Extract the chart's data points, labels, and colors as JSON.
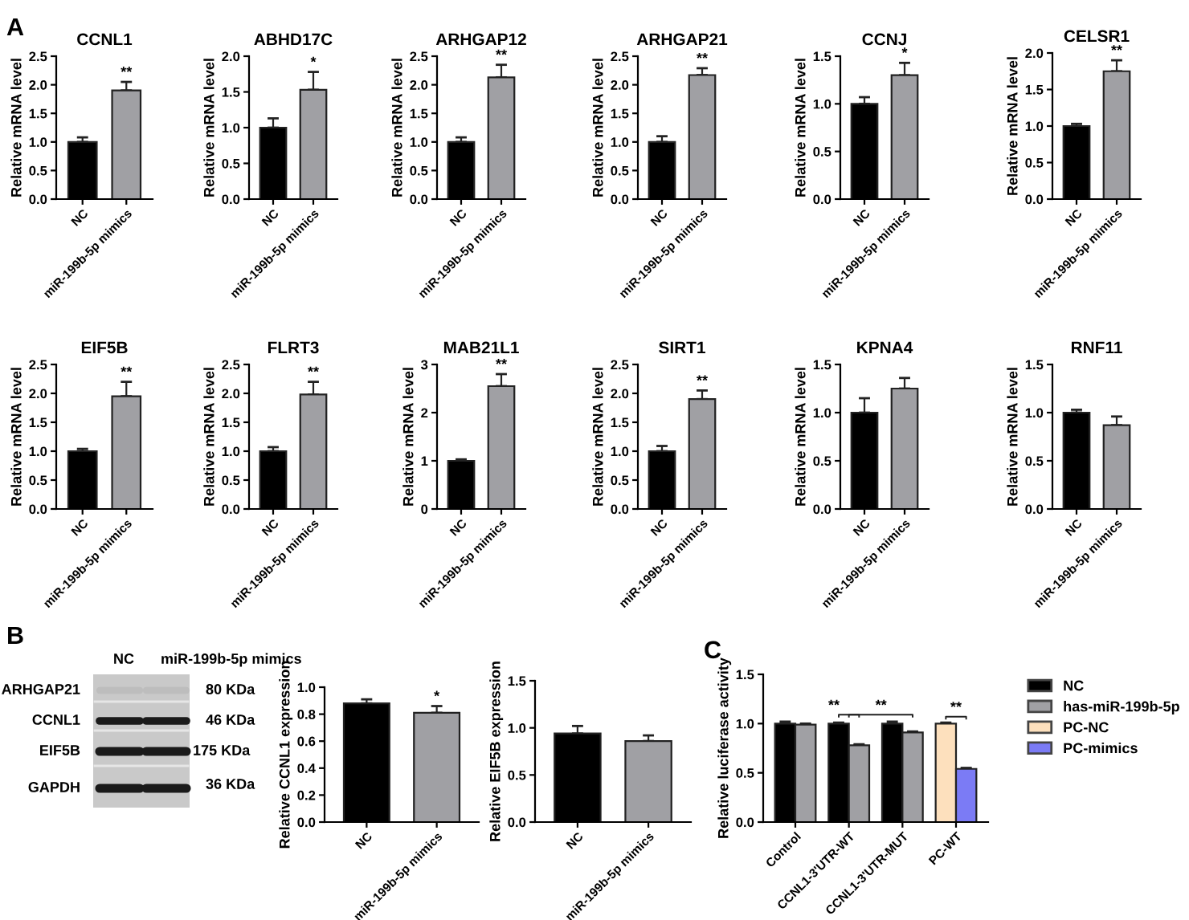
{
  "chart_data": [
    {
      "type": "bar",
      "title": "CCNL1",
      "ylabel": "Relative mRNA level",
      "categories": [
        "NC",
        "miR-199b-5p mimics"
      ],
      "values": [
        1.0,
        1.9
      ],
      "errors": [
        0.08,
        0.15
      ],
      "colors": [
        "#000000",
        "#a0a0a4"
      ],
      "ylim": [
        0,
        2.5
      ],
      "yticks": [
        {
          "value": 0,
          "label": "0.0"
        },
        0.5,
        {
          "value": 1,
          "label": "1.0"
        },
        1.5,
        {
          "value": 2,
          "label": "2.0"
        },
        2.5
      ],
      "annotations": [
        "A",
        {
          "text": "**",
          "x": "miR-199b-5p mimics",
          "y": 2.05
        }
      ]
    },
    {
      "type": "bar",
      "title": "ABHD17C",
      "ylabel": "Relative mRNA level",
      "categories": [
        "NC",
        "miR-199b-5p mimics"
      ],
      "values": [
        1.0,
        1.53
      ],
      "errors": [
        0.13,
        0.25
      ],
      "colors": [
        "#000000",
        "#a0a0a4"
      ],
      "ylim": [
        0,
        2.0
      ],
      "yticks": [
        {
          "value": 0,
          "label": "0.0"
        },
        0.5,
        {
          "value": 1,
          "label": "1.0"
        },
        1.5,
        {
          "value": 2,
          "label": "2.0"
        }
      ],
      "annotations": [
        {
          "text": "*",
          "x": "miR-199b-5p mimics",
          "y": 1.78
        }
      ]
    },
    {
      "type": "bar",
      "title": "ARHGAP12",
      "ylabel": "Relative mRNA level",
      "categories": [
        "NC",
        "miR-199b-5p mimics"
      ],
      "values": [
        1.0,
        2.13
      ],
      "errors": [
        0.08,
        0.22
      ],
      "colors": [
        "#000000",
        "#a0a0a4"
      ],
      "ylim": [
        0,
        2.5
      ],
      "yticks": [
        {
          "value": 0,
          "label": "0.0"
        },
        0.5,
        {
          "value": 1,
          "label": "1.0"
        },
        1.5,
        {
          "value": 2,
          "label": "2.0"
        },
        2.5
      ],
      "annotations": [
        {
          "text": "**",
          "x": "miR-199b-5p mimics",
          "y": 2.35
        }
      ]
    },
    {
      "type": "bar",
      "title": "ARHGAP21",
      "ylabel": "Relative mRNA level",
      "categories": [
        "NC",
        "miR-199b-5p mimics"
      ],
      "values": [
        1.0,
        2.17
      ],
      "errors": [
        0.1,
        0.12
      ],
      "colors": [
        "#000000",
        "#a0a0a4"
      ],
      "ylim": [
        0,
        2.5
      ],
      "yticks": [
        {
          "value": 0,
          "label": "0.0"
        },
        0.5,
        {
          "value": 1,
          "label": "1.0"
        },
        1.5,
        {
          "value": 2,
          "label": "2.0"
        },
        2.5
      ],
      "annotations": [
        {
          "text": "**",
          "x": "miR-199b-5p mimics",
          "y": 2.29
        }
      ]
    },
    {
      "type": "bar",
      "title": "CCNJ",
      "ylabel": "Relative mRNA level",
      "categories": [
        "NC",
        "miR-199b-5p mimics"
      ],
      "values": [
        1.0,
        1.3
      ],
      "errors": [
        0.07,
        0.13
      ],
      "colors": [
        "#000000",
        "#a0a0a4"
      ],
      "ylim": [
        0,
        1.5
      ],
      "yticks": [
        {
          "value": 0,
          "label": "0.0"
        },
        0.5,
        {
          "value": 1,
          "label": "1.0"
        },
        1.5
      ],
      "annotations": [
        {
          "text": "*",
          "x": "miR-199b-5p mimics",
          "y": 1.43
        }
      ]
    },
    {
      "type": "bar",
      "title": "CELSR1",
      "ylabel": "Relative mRNA level",
      "categories": [
        "NC",
        "miR-199b-5p mimics"
      ],
      "values": [
        1.0,
        1.75
      ],
      "errors": [
        0.03,
        0.15
      ],
      "colors": [
        "#000000",
        "#a0a0a4"
      ],
      "ylim": [
        0,
        2.0
      ],
      "yticks": [
        {
          "value": 0,
          "label": "0.0"
        },
        0.5,
        {
          "value": 1,
          "label": "1.0"
        },
        1.5,
        {
          "value": 2,
          "label": "2.0"
        }
      ],
      "annotations": [
        {
          "text": "**",
          "x": "miR-199b-5p mimics",
          "y": 1.9
        }
      ]
    },
    {
      "type": "bar",
      "title": "EIF5B",
      "ylabel": "Relative mRNA level",
      "categories": [
        "NC",
        "miR-199b-5p mimics"
      ],
      "values": [
        1.0,
        1.95
      ],
      "errors": [
        0.04,
        0.25
      ],
      "colors": [
        "#000000",
        "#a0a0a4"
      ],
      "ylim": [
        0,
        2.5
      ],
      "yticks": [
        {
          "value": 0,
          "label": "0.0"
        },
        0.5,
        {
          "value": 1,
          "label": "1.0"
        },
        1.5,
        {
          "value": 2,
          "label": "2.0"
        },
        2.5
      ],
      "annotations": [
        {
          "text": "**",
          "x": "miR-199b-5p mimics",
          "y": 2.2
        }
      ]
    },
    {
      "type": "bar",
      "title": "FLRT3",
      "ylabel": "Relative mRNA level",
      "categories": [
        "NC",
        "miR-199b-5p mimics"
      ],
      "values": [
        1.0,
        1.98
      ],
      "errors": [
        0.07,
        0.22
      ],
      "colors": [
        "#000000",
        "#a0a0a4"
      ],
      "ylim": [
        0,
        2.5
      ],
      "yticks": [
        {
          "value": 0,
          "label": "0.0"
        },
        0.5,
        {
          "value": 1,
          "label": "1.0"
        },
        1.5,
        {
          "value": 2,
          "label": "2.0"
        },
        2.5
      ],
      "annotations": [
        {
          "text": "**",
          "x": "miR-199b-5p mimics",
          "y": 2.2
        }
      ]
    },
    {
      "type": "bar",
      "title": "MAB21L1",
      "ylabel": "Relative mRNA level",
      "categories": [
        "NC",
        "miR-199b-5p mimics"
      ],
      "values": [
        1.0,
        2.55
      ],
      "errors": [
        0.03,
        0.25
      ],
      "colors": [
        "#000000",
        "#a0a0a4"
      ],
      "ylim": [
        0,
        3
      ],
      "yticks": [
        0,
        1,
        2,
        3
      ],
      "annotations": [
        {
          "text": "**",
          "x": "miR-199b-5p mimics",
          "y": 2.8
        }
      ]
    },
    {
      "type": "bar",
      "title": "SIRT1",
      "ylabel": "Relative mRNA level",
      "categories": [
        "NC",
        "miR-199b-5p mimics"
      ],
      "values": [
        1.0,
        1.9
      ],
      "errors": [
        0.09,
        0.15
      ],
      "colors": [
        "#000000",
        "#a0a0a4"
      ],
      "ylim": [
        0,
        2.5
      ],
      "yticks": [
        {
          "value": 0,
          "label": "0.0"
        },
        0.5,
        {
          "value": 1,
          "label": "1.0"
        },
        1.5,
        {
          "value": 2,
          "label": "2.0"
        },
        2.5
      ],
      "annotations": [
        {
          "text": "**",
          "x": "miR-199b-5p mimics",
          "y": 2.05
        }
      ]
    },
    {
      "type": "bar",
      "title": "KPNA4",
      "ylabel": "Relative mRNA level",
      "categories": [
        "NC",
        "miR-199b-5p mimics"
      ],
      "values": [
        1.0,
        1.25
      ],
      "errors": [
        0.15,
        0.11
      ],
      "colors": [
        "#000000",
        "#a0a0a4"
      ],
      "ylim": [
        0,
        1.5
      ],
      "yticks": [
        {
          "value": 0,
          "label": "0.0"
        },
        0.5,
        {
          "value": 1,
          "label": "1.0"
        },
        1.5
      ]
    },
    {
      "type": "bar",
      "title": "RNF11",
      "ylabel": "Relative mRNA level",
      "categories": [
        "NC",
        "miR-199b-5p mimics"
      ],
      "values": [
        1.0,
        0.87
      ],
      "errors": [
        0.03,
        0.09
      ],
      "colors": [
        "#000000",
        "#a0a0a4"
      ],
      "ylim": [
        0,
        1.5
      ],
      "yticks": [
        {
          "value": 0,
          "label": "0.0"
        },
        0.5,
        {
          "value": 1,
          "label": "1.0"
        },
        1.5
      ]
    },
    {
      "type": "other",
      "annotations": [
        "B",
        "NC",
        "miR-199b-5p mimics",
        "ARHGAP21",
        "CCNL1",
        "EIF5B",
        "GAPDH",
        "80 KDa",
        "46 KDa",
        "175 KDa",
        "36 KDa"
      ]
    },
    {
      "type": "bar",
      "ylabel": "Relative CCNL1 expression",
      "categories": [
        "NC",
        "miR-199b-5p mimics"
      ],
      "values": [
        0.88,
        0.81
      ],
      "errors": [
        0.03,
        0.05
      ],
      "colors": [
        "#000000",
        "#a0a0a4"
      ],
      "ylim": [
        0,
        1.0
      ],
      "yticks": [
        {
          "value": 0,
          "label": "0.0"
        },
        0.2,
        0.4,
        0.6,
        0.8,
        {
          "value": 1,
          "label": "1.0"
        }
      ],
      "annotations": [
        {
          "text": "*",
          "x": "miR-199b-5p mimics",
          "y": 0.86
        }
      ]
    },
    {
      "type": "bar",
      "ylabel": "Relative EIF5B expression",
      "categories": [
        "NC",
        "miR-199b-5p mimics"
      ],
      "values": [
        0.94,
        0.86
      ],
      "errors": [
        0.08,
        0.06
      ],
      "colors": [
        "#000000",
        "#a0a0a4"
      ],
      "ylim": [
        0,
        1.5
      ],
      "yticks": [
        {
          "value": 0,
          "label": "0.0"
        },
        0.5,
        {
          "value": 1,
          "label": "1.0"
        },
        1.5
      ]
    },
    {
      "type": "bar",
      "ylabel": "Relative luciferase activity",
      "categories": [
        "Control",
        "CCNL1-3'UTR-WT",
        "CCNL1-3'UTR-MUT",
        "PC-WT"
      ],
      "ylim": [
        0,
        1.5
      ],
      "yticks": [
        {
          "value": 0,
          "label": "0.0"
        },
        0.5,
        {
          "value": 1,
          "label": "1.0"
        },
        1.5
      ],
      "legend": "right",
      "annotations": [
        "C",
        "**",
        "**",
        "**"
      ],
      "series": [
        {
          "name": "NC",
          "color": "#000000",
          "values": [
            1.0,
            1.0,
            1.0,
            null
          ],
          "errors": [
            0.02,
            0.01,
            0.02,
            null
          ]
        },
        {
          "name": "has-miR-199b-5p",
          "color": "#a0a0a4",
          "values": [
            0.99,
            0.78,
            0.91,
            null
          ],
          "errors": [
            0.01,
            0.01,
            0.01,
            null
          ]
        },
        {
          "name": "PC-NC",
          "color": "#fde0bd",
          "values": [
            null,
            null,
            null,
            1.0
          ],
          "errors": [
            null,
            null,
            null,
            0.01
          ]
        },
        {
          "name": "PC-mimics",
          "color": "#7b7bf5",
          "values": [
            null,
            null,
            null,
            0.54
          ],
          "errors": [
            null,
            null,
            null,
            0.01
          ]
        }
      ]
    }
  ]
}
